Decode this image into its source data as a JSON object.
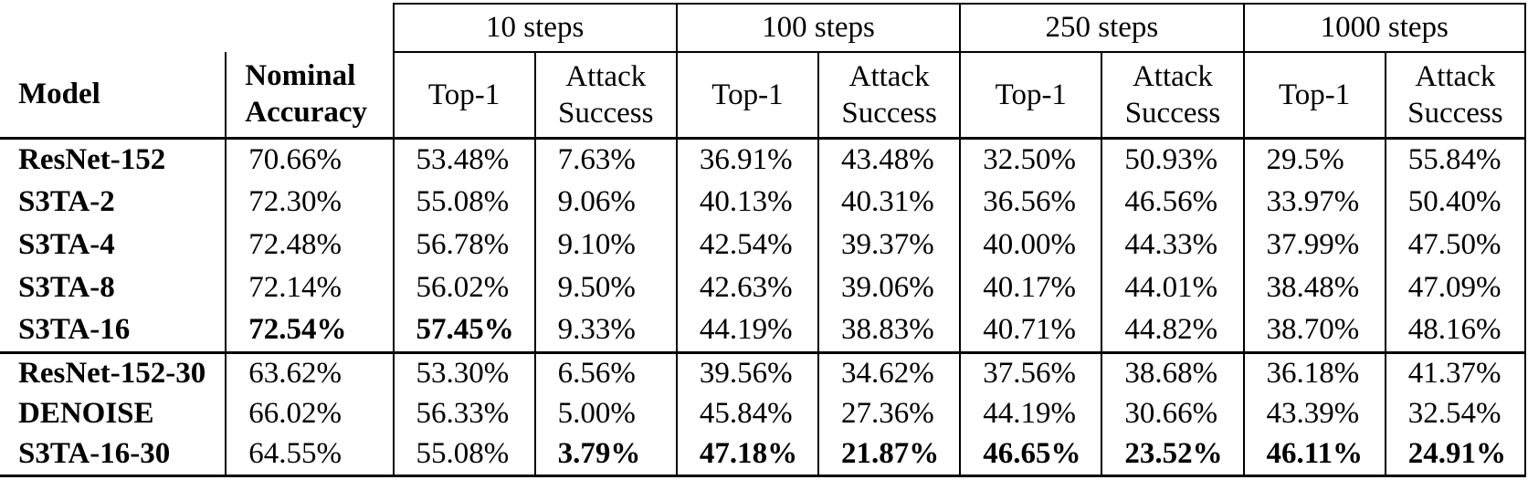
{
  "table": {
    "step_groups": [
      "10 steps",
      "100 steps",
      "250 steps",
      "1000 steps"
    ],
    "model_header": "Model",
    "nominal_header": "Nominal Accuracy",
    "sub_headers": {
      "top1": "Top-1",
      "attack": "Attack Success"
    },
    "value_columns": [
      "Nominal Accuracy",
      "Top-1 (10)",
      "Attack Success (10)",
      "Top-1 (100)",
      "Attack Success (100)",
      "Top-1 (250)",
      "Attack Success (250)",
      "Top-1 (1000)",
      "Attack Success (1000)"
    ],
    "groups": [
      {
        "rows": [
          {
            "model": "ResNet-152",
            "values": [
              "70.66%",
              "53.48%",
              "7.63%",
              "36.91%",
              "43.48%",
              "32.50%",
              "50.93%",
              "29.5%",
              "55.84%"
            ],
            "bold": [
              false,
              false,
              false,
              false,
              false,
              false,
              false,
              false,
              false
            ]
          },
          {
            "model": "S3TA-2",
            "values": [
              "72.30%",
              "55.08%",
              "9.06%",
              "40.13%",
              "40.31%",
              "36.56%",
              "46.56%",
              "33.97%",
              "50.40%"
            ],
            "bold": [
              false,
              false,
              false,
              false,
              false,
              false,
              false,
              false,
              false
            ]
          },
          {
            "model": "S3TA-4",
            "values": [
              "72.48%",
              "56.78%",
              "9.10%",
              "42.54%",
              "39.37%",
              "40.00%",
              "44.33%",
              "37.99%",
              "47.50%"
            ],
            "bold": [
              false,
              false,
              false,
              false,
              false,
              false,
              false,
              false,
              false
            ]
          },
          {
            "model": "S3TA-8",
            "values": [
              "72.14%",
              "56.02%",
              "9.50%",
              "42.63%",
              "39.06%",
              "40.17%",
              "44.01%",
              "38.48%",
              "47.09%"
            ],
            "bold": [
              false,
              false,
              false,
              false,
              false,
              false,
              false,
              false,
              false
            ]
          },
          {
            "model": "S3TA-16",
            "values": [
              "72.54%",
              "57.45%",
              "9.33%",
              "44.19%",
              "38.83%",
              "40.71%",
              "44.82%",
              "38.70%",
              "48.16%"
            ],
            "bold": [
              true,
              true,
              false,
              false,
              false,
              false,
              false,
              false,
              false
            ]
          }
        ]
      },
      {
        "rows": [
          {
            "model": "ResNet-152-30",
            "values": [
              "63.62%",
              "53.30%",
              "6.56%",
              "39.56%",
              "34.62%",
              "37.56%",
              "38.68%",
              "36.18%",
              "41.37%"
            ],
            "bold": [
              false,
              false,
              false,
              false,
              false,
              false,
              false,
              false,
              false
            ]
          },
          {
            "model": "DENOISE",
            "values": [
              "66.02%",
              "56.33%",
              "5.00%",
              "45.84%",
              "27.36%",
              "44.19%",
              "30.66%",
              "43.39%",
              "32.54%"
            ],
            "bold": [
              false,
              false,
              false,
              false,
              false,
              false,
              false,
              false,
              false
            ]
          },
          {
            "model": "S3TA-16-30",
            "values": [
              "64.55%",
              "55.08%",
              "3.79%",
              "47.18%",
              "21.87%",
              "46.65%",
              "23.52%",
              "46.11%",
              "24.91%"
            ],
            "bold": [
              false,
              false,
              true,
              true,
              true,
              true,
              true,
              true,
              true
            ]
          }
        ]
      }
    ],
    "colors": {
      "text": "#000000",
      "background": "#ffffff",
      "rule": "#000000"
    }
  }
}
